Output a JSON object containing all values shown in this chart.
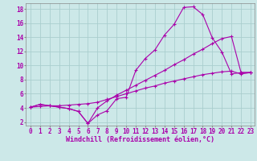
{
  "xlabel": "Windchill (Refroidissement éolien,°C)",
  "background_color": "#cce8e8",
  "grid_color": "#aacece",
  "line_color": "#aa00aa",
  "xlim": [
    -0.5,
    23.4
  ],
  "ylim": [
    1.5,
    18.8
  ],
  "xticks": [
    0,
    1,
    2,
    3,
    4,
    5,
    6,
    7,
    8,
    9,
    10,
    11,
    12,
    13,
    14,
    15,
    16,
    17,
    18,
    19,
    20,
    21,
    22,
    23
  ],
  "yticks": [
    2,
    4,
    6,
    8,
    10,
    12,
    14,
    16,
    18
  ],
  "line1_x": [
    0,
    1,
    2,
    3,
    4,
    5,
    6,
    7,
    8,
    9,
    10,
    11,
    12,
    13,
    14,
    15,
    16,
    17,
    18,
    19,
    20,
    21,
    22,
    23
  ],
  "line1_y": [
    4.1,
    4.5,
    4.3,
    4.1,
    3.9,
    3.5,
    1.8,
    3.0,
    3.6,
    5.3,
    5.5,
    9.3,
    11.0,
    12.2,
    14.3,
    15.8,
    18.2,
    18.3,
    17.2,
    13.9,
    11.9,
    8.8,
    9.0,
    9.0
  ],
  "line2_x": [
    0,
    1,
    2,
    3,
    4,
    5,
    6,
    7,
    8,
    9,
    10,
    11,
    12,
    13,
    14,
    15,
    16,
    17,
    18,
    19,
    20,
    21,
    22,
    23
  ],
  "line2_y": [
    4.1,
    4.5,
    4.3,
    4.1,
    3.9,
    3.5,
    1.8,
    4.0,
    5.0,
    5.8,
    6.5,
    7.2,
    7.9,
    8.6,
    9.3,
    10.1,
    10.8,
    11.6,
    12.3,
    13.1,
    13.8,
    14.1,
    9.0,
    9.0
  ],
  "line3_x": [
    0,
    1,
    2,
    3,
    4,
    5,
    6,
    7,
    8,
    9,
    10,
    11,
    12,
    13,
    14,
    15,
    16,
    17,
    18,
    19,
    20,
    21,
    22,
    23
  ],
  "line3_y": [
    4.1,
    4.2,
    4.3,
    4.3,
    4.4,
    4.5,
    4.6,
    4.8,
    5.2,
    5.6,
    6.0,
    6.4,
    6.8,
    7.1,
    7.5,
    7.8,
    8.1,
    8.4,
    8.7,
    8.9,
    9.1,
    9.2,
    8.8,
    9.0
  ],
  "tick_fontsize": 5.5,
  "xlabel_fontsize": 6.0
}
